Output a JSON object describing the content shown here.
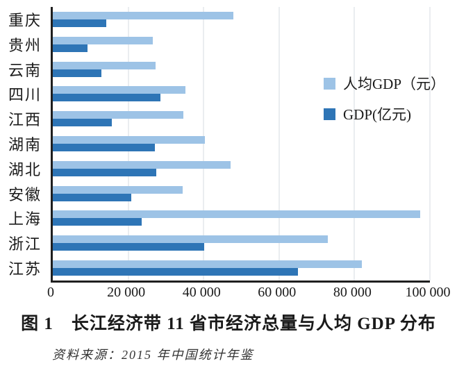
{
  "chart_data": {
    "type": "bar",
    "orientation": "horizontal",
    "categories": [
      "重庆",
      "贵州",
      "云南",
      "四川",
      "江西",
      "湖南",
      "湖北",
      "安徽",
      "上海",
      "浙江",
      "江苏"
    ],
    "series": [
      {
        "name": "人均GDP（元）",
        "color": "#9dc3e6",
        "values": [
          47850,
          26437,
          27264,
          35128,
          34674,
          40271,
          47124,
          34425,
          97370,
          72967,
          81874
        ]
      },
      {
        "name": "GDP(亿元)",
        "color": "#2e75b6",
        "values": [
          14262,
          9266,
          12815,
          28537,
          15715,
          27037,
          27379,
          20849,
          23568,
          40154,
          65088
        ]
      }
    ],
    "xlim": [
      0,
      100000
    ],
    "x_ticks": [
      "0",
      "20 000",
      "40 000",
      "60 000",
      "80 000",
      "100 000"
    ],
    "grid": "vertical-gridlines",
    "legend_position": "inside-upper-right",
    "title": "图 1　长江经济带 11 省市经济总量与人均 GDP 分布"
  },
  "caption": {
    "title": "图 1　长江经济带 11 省市经济总量与人均 GDP 分布",
    "source": "资料来源：2015 年中国统计年鉴"
  },
  "colors": {
    "per_capita_gdp_bar": "#9dc3e6",
    "gdp_bar": "#2e75b6",
    "axis": "#1f1f1f",
    "gridline": "#d4dbe2",
    "text": "#1a1a1a"
  }
}
